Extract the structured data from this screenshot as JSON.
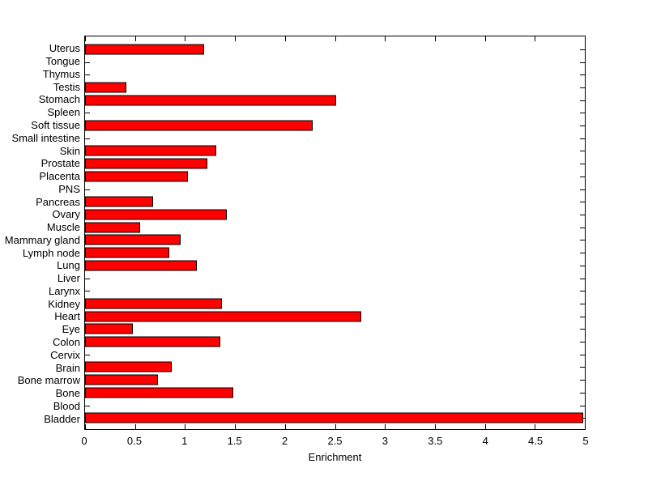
{
  "chart_data": {
    "type": "bar",
    "orientation": "horizontal",
    "title": "",
    "xlabel": "Enrichment",
    "ylabel": "",
    "xlim": [
      0,
      5
    ],
    "grid": false,
    "legend": null,
    "bar_color": "#FF0000",
    "bar_edge_color": "#000000",
    "axis_color": "#000000",
    "background_color": "#FFFFFF",
    "category_order": "top-to-bottom",
    "categories": [
      "Uterus",
      "Tongue",
      "Thymus",
      "Testis",
      "Stomach",
      "Spleen",
      "Soft tissue",
      "Small intestine",
      "Skin",
      "Prostate",
      "Placenta",
      "PNS",
      "Pancreas",
      "Ovary",
      "Muscle",
      "Mammary gland",
      "Lymph node",
      "Lung",
      "Liver",
      "Larynx",
      "Kidney",
      "Heart",
      "Eye",
      "Colon",
      "Cervix",
      "Brain",
      "Bone marrow",
      "Bone",
      "Blood",
      "Bladder"
    ],
    "values": [
      1.19,
      0,
      0,
      0.41,
      2.51,
      0,
      2.28,
      0,
      1.31,
      1.22,
      1.03,
      0,
      0.68,
      1.42,
      0.55,
      0.96,
      0.84,
      1.12,
      0,
      0,
      1.37,
      2.76,
      0.48,
      1.35,
      0,
      0.87,
      0.73,
      1.48,
      0,
      4.98
    ],
    "xticks": [
      0,
      0.5,
      1,
      1.5,
      2,
      2.5,
      3,
      3.5,
      4,
      4.5,
      5
    ],
    "xtick_labels": [
      "0",
      "0.5",
      "1",
      "1.5",
      "2",
      "2.5",
      "3",
      "3.5",
      "4",
      "4.5",
      "5"
    ]
  }
}
